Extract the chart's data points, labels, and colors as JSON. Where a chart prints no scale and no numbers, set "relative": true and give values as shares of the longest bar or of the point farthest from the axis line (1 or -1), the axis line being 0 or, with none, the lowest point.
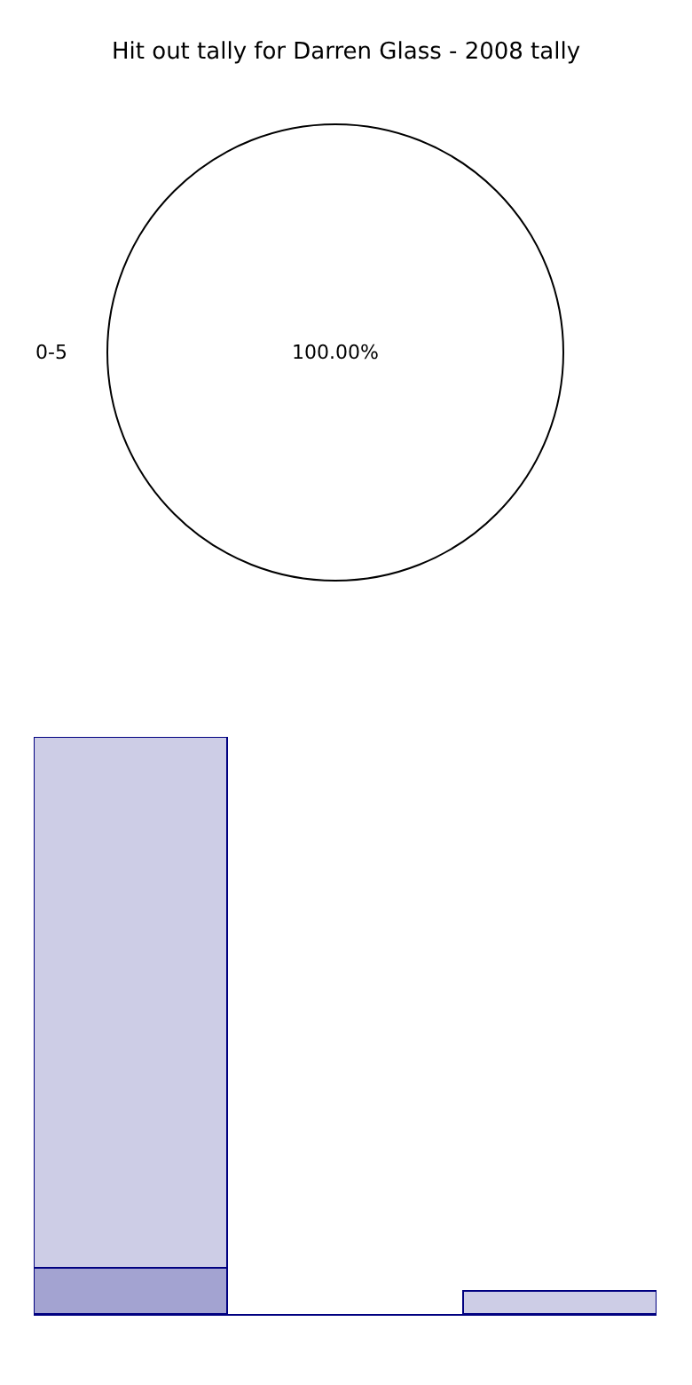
{
  "chart_data": [
    {
      "type": "pie",
      "title": "Hit out tally for Darren Glass - 2008 tally",
      "categories": [
        "0-5"
      ],
      "values": [
        100
      ],
      "colors": [
        "#ffffff"
      ],
      "value_labels": [
        "100.00%"
      ]
    },
    {
      "type": "bar",
      "relative": true,
      "stacked": true,
      "categories": [
        null,
        null
      ],
      "series": [
        {
          "color": "#a3a3d1",
          "values": [
            0.08,
            0
          ]
        },
        {
          "color": "#cdcde6",
          "values": [
            0.92,
            0.04
          ]
        }
      ]
    }
  ]
}
